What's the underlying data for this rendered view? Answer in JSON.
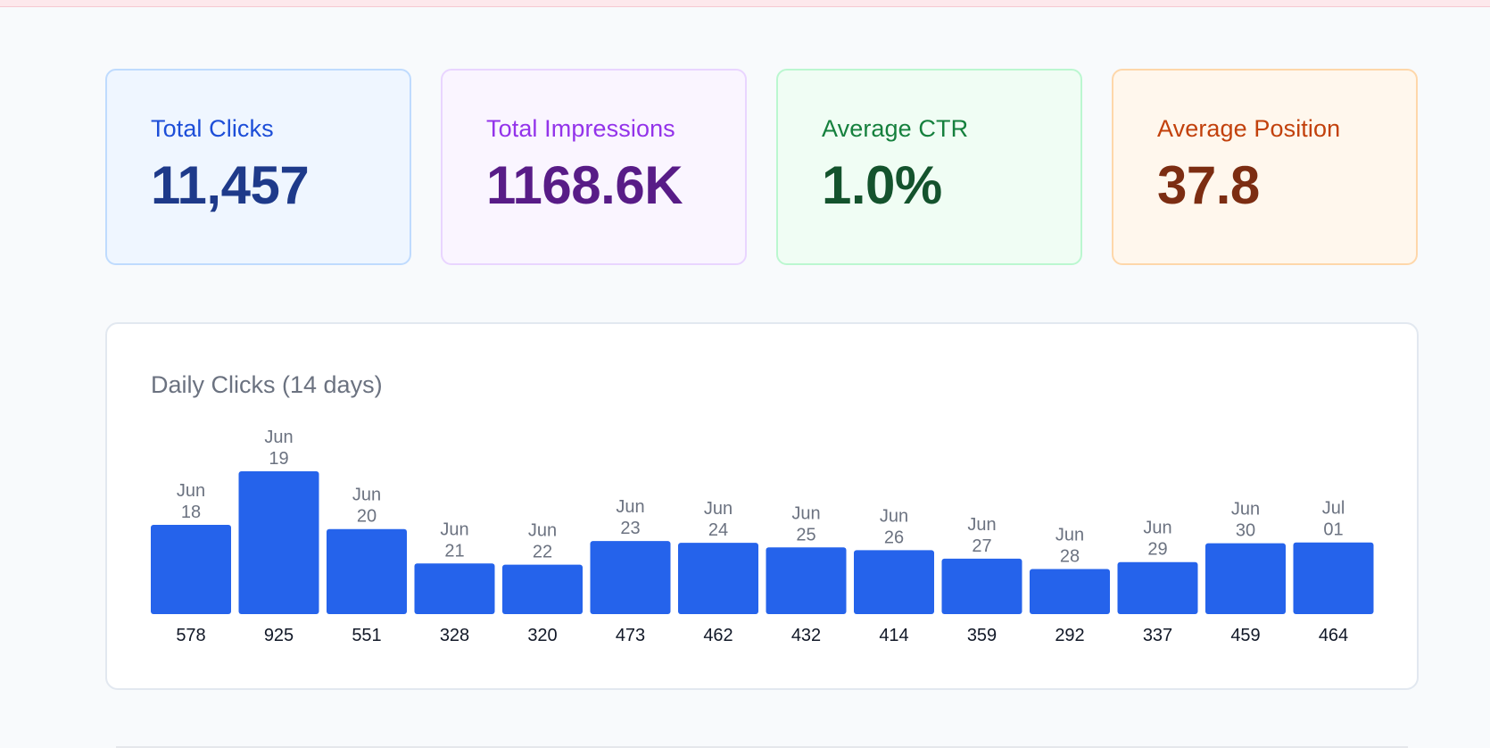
{
  "stats": [
    {
      "label": "Total Clicks",
      "value": "11,457",
      "label_color": "#1d4ed8",
      "value_color": "#1e3a8a"
    },
    {
      "label": "Total Impressions",
      "value": "1168.6K",
      "label_color": "#9333ea",
      "value_color": "#581c87"
    },
    {
      "label": "Average CTR",
      "value": "1.0%",
      "label_color": "#15803d",
      "value_color": "#14532d"
    },
    {
      "label": "Average Position",
      "value": "37.8",
      "label_color": "#c2410c",
      "value_color": "#7c2d12"
    }
  ],
  "chart": {
    "title": "Daily Clicks (14 days)",
    "bar_color": "#2563eb"
  },
  "chart_data": {
    "type": "bar",
    "title": "Daily Clicks (14 days)",
    "categories": [
      [
        "Jun",
        "18"
      ],
      [
        "Jun",
        "19"
      ],
      [
        "Jun",
        "20"
      ],
      [
        "Jun",
        "21"
      ],
      [
        "Jun",
        "22"
      ],
      [
        "Jun",
        "23"
      ],
      [
        "Jun",
        "24"
      ],
      [
        "Jun",
        "25"
      ],
      [
        "Jun",
        "26"
      ],
      [
        "Jun",
        "27"
      ],
      [
        "Jun",
        "28"
      ],
      [
        "Jun",
        "29"
      ],
      [
        "Jun",
        "30"
      ],
      [
        "Jul",
        "01"
      ]
    ],
    "values": [
      578,
      925,
      551,
      328,
      320,
      473,
      462,
      432,
      414,
      359,
      292,
      337,
      459,
      464
    ],
    "ylim": [
      0,
      925
    ],
    "grid": false
  }
}
